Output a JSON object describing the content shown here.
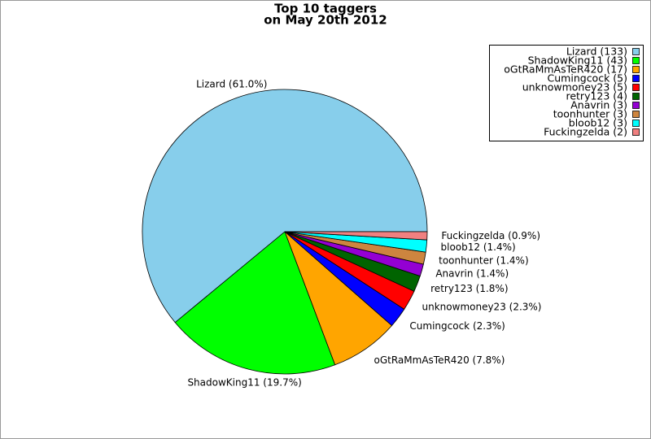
{
  "chart_data": {
    "type": "pie",
    "title": [
      "Top 10 taggers",
      "on May 20th 2012"
    ],
    "categories": [
      "Lizard (61.0%)",
      "ShadowKing11 (19.7%)",
      "oGtRaMmAsTeR420 (7.8%)",
      "Cumingcock (2.3%)",
      "unknowmoney23 (2.3%)",
      "retry123 (1.8%)",
      "Anavrin (1.4%)",
      "toonhunter (1.4%)",
      "bloob12 (1.4%)",
      "Fuckingzelda (0.9%)"
    ],
    "legend_labels": [
      "Lizard (133)",
      "ShadowKing11 (43)",
      "oGtRaMmAsTeR420 (17)",
      "Cumingcock (5)",
      "unknowmoney23 (5)",
      "retry123 (4)",
      "Anavrin (3)",
      "toonhunter (3)",
      "bloob12 (3)",
      "Fuckingzelda (2)"
    ],
    "values": [
      133,
      43,
      17,
      5,
      5,
      4,
      3,
      3,
      3,
      2
    ],
    "colors": [
      "#87ceeb",
      "#00ff00",
      "#ffa500",
      "#0000ff",
      "#ff0000",
      "#006400",
      "#9400d3",
      "#cd853f",
      "#00ffff",
      "#f08080"
    ],
    "legend": "upper right"
  }
}
